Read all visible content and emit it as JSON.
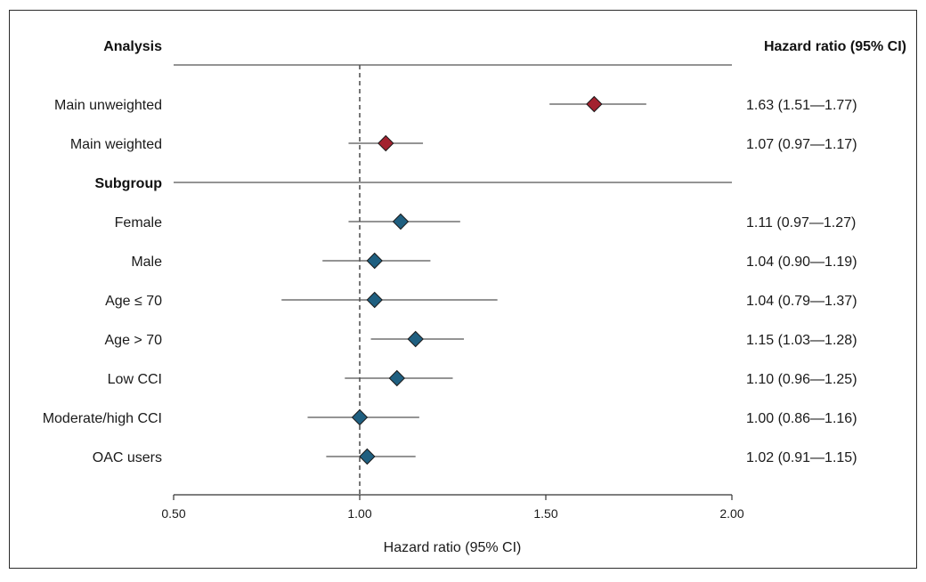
{
  "chart_data": {
    "type": "forest",
    "header_left": "Analysis",
    "header_right": "Hazard ratio (95% CI)",
    "xlabel": "Hazard ratio (95% CI)",
    "xlim": [
      0.5,
      2.0
    ],
    "xticks": [
      0.5,
      1.0,
      1.5,
      2.0
    ],
    "xtick_labels": [
      "0.50",
      "1.00",
      "1.50",
      "2.00"
    ],
    "reference_line": 1.0,
    "colors": {
      "main": "#a3222f",
      "subgroup": "#1f5f80"
    },
    "rows": [
      {
        "kind": "data",
        "label": "Main unweighted",
        "hr": 1.63,
        "lo": 1.51,
        "hi": 1.77,
        "text": "1.63 (1.51—1.77)",
        "color": "main"
      },
      {
        "kind": "data",
        "label": "Main weighted",
        "hr": 1.07,
        "lo": 0.97,
        "hi": 1.17,
        "text": "1.07 (0.97—1.17)",
        "color": "main"
      },
      {
        "kind": "section",
        "label": "Subgroup"
      },
      {
        "kind": "data",
        "label": "Female",
        "hr": 1.11,
        "lo": 0.97,
        "hi": 1.27,
        "text": "1.11 (0.97—1.27)",
        "color": "subgroup"
      },
      {
        "kind": "data",
        "label": "Male",
        "hr": 1.04,
        "lo": 0.9,
        "hi": 1.19,
        "text": "1.04 (0.90—1.19)",
        "color": "subgroup"
      },
      {
        "kind": "data",
        "label": "Age ≤ 70",
        "hr": 1.04,
        "lo": 0.79,
        "hi": 1.37,
        "text": "1.04 (0.79—1.37)",
        "color": "subgroup"
      },
      {
        "kind": "data",
        "label": "Age > 70",
        "hr": 1.15,
        "lo": 1.03,
        "hi": 1.28,
        "text": "1.15 (1.03—1.28)",
        "color": "subgroup"
      },
      {
        "kind": "data",
        "label": "Low CCI",
        "hr": 1.1,
        "lo": 0.96,
        "hi": 1.25,
        "text": "1.10 (0.96—1.25)",
        "color": "subgroup"
      },
      {
        "kind": "data",
        "label": "Moderate/high CCI",
        "hr": 1.0,
        "lo": 0.86,
        "hi": 1.16,
        "text": "1.00 (0.86—1.16)",
        "color": "subgroup"
      },
      {
        "kind": "data",
        "label": "OAC users",
        "hr": 1.02,
        "lo": 0.91,
        "hi": 1.15,
        "text": "1.02 (0.91—1.15)",
        "color": "subgroup"
      }
    ]
  }
}
